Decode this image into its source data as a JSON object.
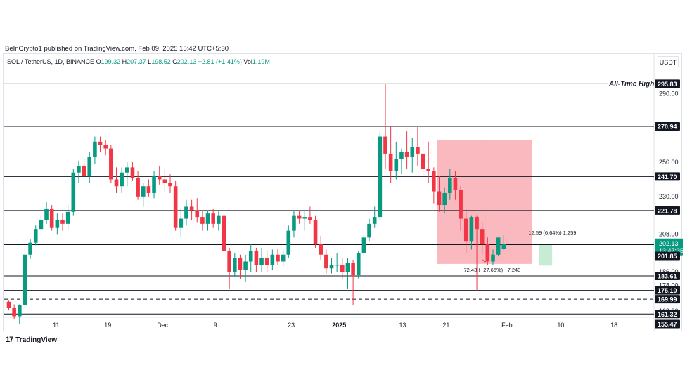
{
  "header": {
    "published": "BeInCrypto1 published on TradingView.com, Feb 09, 2025 15:42 UTC+5:30",
    "symbol": "SOL / TetherUS, 1D, BINANCE",
    "o_label": "O",
    "o_value": "199.32",
    "h_label": "H",
    "h_value": "207.37",
    "l_label": "L",
    "l_value": "198.52",
    "c_label": "C",
    "c_value": "202.13",
    "change": "+2.81 (+1.41%)",
    "vol_label": "Vol",
    "vol_value": "1.19M"
  },
  "currency": "USDT",
  "footer": {
    "brand": "TradingView",
    "mark": "17"
  },
  "colors": {
    "up": "#089981",
    "down": "#f23645",
    "grid_line": "#131722",
    "box_fill": "#f7a1a8",
    "box_fill_green": "#b9e6c9"
  },
  "chart_data": {
    "type": "candlestick",
    "ylim": [
      152,
      305
    ],
    "y_ticks": [
      "290.00",
      "250.00",
      "230.00",
      "208.00",
      "186.00",
      "178.00",
      "163.00"
    ],
    "x_ticks": [
      "11",
      "19",
      "Dec",
      "9",
      "23",
      "2025",
      "13",
      "21",
      "Feb",
      "10",
      "18"
    ],
    "levels": [
      {
        "value": 295.83,
        "label": "295.83",
        "style": "solid",
        "annotation": "All-Time High"
      },
      {
        "value": 270.94,
        "label": "270.94",
        "style": "solid"
      },
      {
        "value": 241.7,
        "label": "241.70",
        "style": "solid"
      },
      {
        "value": 221.78,
        "label": "221.78",
        "style": "solid"
      },
      {
        "value": 201.85,
        "label": "201.85",
        "style": "solid"
      },
      {
        "value": 183.61,
        "label": "183.61",
        "style": "solid"
      },
      {
        "value": 175.1,
        "label": "175.10",
        "style": "solid"
      },
      {
        "value": 169.99,
        "label": "169.99",
        "style": "dashed"
      },
      {
        "value": 161.32,
        "label": "161.32",
        "style": "solid"
      },
      {
        "value": 155.47,
        "label": "155.47",
        "style": "solid"
      }
    ],
    "current_price": {
      "value": 202.13,
      "label": "202.13",
      "countdown": "13:47:35"
    },
    "measure_down": {
      "text": "−72.43 (−27.65%) −7,243"
    },
    "measure_up": {
      "text": "12.59 (6.64%) 1,259"
    },
    "candles": [
      [
        168.5,
        169.5,
        163.5,
        165.0
      ],
      [
        165.0,
        167.0,
        158.5,
        160.0
      ],
      [
        160.0,
        167.0,
        155.5,
        166.5
      ],
      [
        166.5,
        200.0,
        165.0,
        196.0
      ],
      [
        196.0,
        205.0,
        193.5,
        203.0
      ],
      [
        203.0,
        213.0,
        201.5,
        211.0
      ],
      [
        211.0,
        219.0,
        210.0,
        216.0
      ],
      [
        216.0,
        227.0,
        214.0,
        223.0
      ],
      [
        223.0,
        225.0,
        210.0,
        212.0
      ],
      [
        212.0,
        220.0,
        208.0,
        216.0
      ],
      [
        216.0,
        220.0,
        210.0,
        214.0
      ],
      [
        214.0,
        225.0,
        211.0,
        221.0
      ],
      [
        221.0,
        246.0,
        219.0,
        244.0
      ],
      [
        244.0,
        251.0,
        238.0,
        248.0
      ],
      [
        248.0,
        252.0,
        240.0,
        242.0
      ],
      [
        242.0,
        256.0,
        238.0,
        253.0
      ],
      [
        253.0,
        265.0,
        249.0,
        262.0
      ],
      [
        262.0,
        265.0,
        256.0,
        260.0
      ],
      [
        260.0,
        263.0,
        254.0,
        258.0
      ],
      [
        258.0,
        260.0,
        238.0,
        240.0
      ],
      [
        240.0,
        247.0,
        232.0,
        236.0
      ],
      [
        236.0,
        247.0,
        232.0,
        244.0
      ],
      [
        244.0,
        250.0,
        236.0,
        247.0
      ],
      [
        247.0,
        250.0,
        239.0,
        241.0
      ],
      [
        241.0,
        245.0,
        228.0,
        230.0
      ],
      [
        230.0,
        238.0,
        224.0,
        236.0
      ],
      [
        236.0,
        240.0,
        230.0,
        232.0
      ],
      [
        232.0,
        245.0,
        229.0,
        242.0
      ],
      [
        242.0,
        248.0,
        237.0,
        240.0
      ],
      [
        240.0,
        246.0,
        233.0,
        238.0
      ],
      [
        238.0,
        243.0,
        232.0,
        236.0
      ],
      [
        236.0,
        239.0,
        210.0,
        212.0
      ],
      [
        212.0,
        223.0,
        206.0,
        217.0
      ],
      [
        217.0,
        228.0,
        213.0,
        224.0
      ],
      [
        224.0,
        228.0,
        216.0,
        222.0
      ],
      [
        222.0,
        229.0,
        215.0,
        218.0
      ],
      [
        218.0,
        222.0,
        210.0,
        214.0
      ],
      [
        214.0,
        222.0,
        210.0,
        220.0
      ],
      [
        220.0,
        223.0,
        212.0,
        214.0
      ],
      [
        214.0,
        222.0,
        210.0,
        219.0
      ],
      [
        219.0,
        221.0,
        196.0,
        198.0
      ],
      [
        198.0,
        200.0,
        176.0,
        186.0
      ],
      [
        186.0,
        197.0,
        183.0,
        194.0
      ],
      [
        194.0,
        196.0,
        182.0,
        187.0
      ],
      [
        187.0,
        196.0,
        180.0,
        192.0
      ],
      [
        192.0,
        202.0,
        186.0,
        198.0
      ],
      [
        198.0,
        200.0,
        186.0,
        190.0
      ],
      [
        190.0,
        200.0,
        186.0,
        194.0
      ],
      [
        194.0,
        198.0,
        186.0,
        190.0
      ],
      [
        190.0,
        199.0,
        187.0,
        196.0
      ],
      [
        196.0,
        199.0,
        190.0,
        192.0
      ],
      [
        192.0,
        199.0,
        189.0,
        196.0
      ],
      [
        196.0,
        213.0,
        194.0,
        210.0
      ],
      [
        210.0,
        222.0,
        206.0,
        219.0
      ],
      [
        219.0,
        222.0,
        214.0,
        217.0
      ],
      [
        217.0,
        222.0,
        210.0,
        218.0
      ],
      [
        218.0,
        224.0,
        214.0,
        216.0
      ],
      [
        216.0,
        219.0,
        200.0,
        202.0
      ],
      [
        202.0,
        207.0,
        193.0,
        196.0
      ],
      [
        196.0,
        199.0,
        185.0,
        188.0
      ],
      [
        188.0,
        194.0,
        185.0,
        190.0
      ],
      [
        190.0,
        197.0,
        186.0,
        190.0
      ],
      [
        190.0,
        194.0,
        182.0,
        186.0
      ],
      [
        186.0,
        194.0,
        176.0,
        191.0
      ],
      [
        191.0,
        193.0,
        166.5,
        184.0
      ],
      [
        184.0,
        198.0,
        182.0,
        197.0
      ],
      [
        197.0,
        208.0,
        195.0,
        206.0
      ],
      [
        206.0,
        217.0,
        204.0,
        214.0
      ],
      [
        214.0,
        224.0,
        212.0,
        218.0
      ],
      [
        218.0,
        268.0,
        216.0,
        265.0
      ],
      [
        265.0,
        295.8,
        246.0,
        255.0
      ],
      [
        255.0,
        271.0,
        238.0,
        245.0
      ],
      [
        245.0,
        262.0,
        240.0,
        252.0
      ],
      [
        252.0,
        258.0,
        243.0,
        256.0
      ],
      [
        256.0,
        268.0,
        246.0,
        253.0
      ],
      [
        253.0,
        264.0,
        244.0,
        259.0
      ],
      [
        259.0,
        270.5,
        248.0,
        255.0
      ],
      [
        255.0,
        263.0,
        240.0,
        246.0
      ],
      [
        246.0,
        262.0,
        238.0,
        245.0
      ],
      [
        245.0,
        247.0,
        226.0,
        233.0
      ],
      [
        233.0,
        242.0,
        221.0,
        225.0
      ],
      [
        225.0,
        235.0,
        220.0,
        232.0
      ],
      [
        232.0,
        246.0,
        228.0,
        241.0
      ],
      [
        241.0,
        245.0,
        228.0,
        234.0
      ],
      [
        234.0,
        236.0,
        210.0,
        217.0
      ],
      [
        217.0,
        223.0,
        197.0,
        204.0
      ],
      [
        204.0,
        219.0,
        199.0,
        218.0
      ],
      [
        218.0,
        219.0,
        175.0,
        211.0
      ],
      [
        211.0,
        215.0,
        196.0,
        202.0
      ],
      [
        202.0,
        206.0,
        190.0,
        192.0
      ],
      [
        192.0,
        199.0,
        190.0,
        196.0
      ],
      [
        196.0,
        206.0,
        195.0,
        206.0
      ],
      [
        199.3,
        207.4,
        198.5,
        202.1
      ]
    ]
  }
}
